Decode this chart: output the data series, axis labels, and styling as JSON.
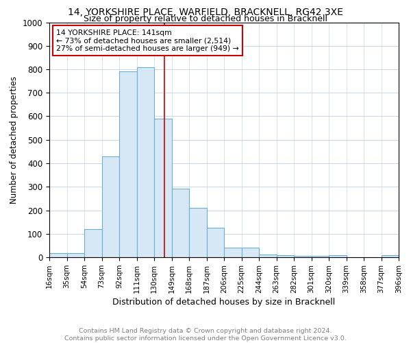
{
  "title1": "14, YORKSHIRE PLACE, WARFIELD, BRACKNELL, RG42 3XE",
  "title2": "Size of property relative to detached houses in Bracknell",
  "xlabel": "Distribution of detached houses by size in Bracknell",
  "ylabel": "Number of detached properties",
  "bin_edges": [
    16,
    35,
    54,
    73,
    92,
    111,
    130,
    149,
    168,
    187,
    206,
    225,
    244,
    263,
    282,
    301,
    320,
    339,
    358,
    377,
    396
  ],
  "bin_heights": [
    18,
    18,
    120,
    430,
    790,
    808,
    590,
    293,
    210,
    125,
    40,
    40,
    12,
    9,
    5,
    5,
    8,
    0,
    0,
    8
  ],
  "bar_facecolor": "#d6e8f5",
  "bar_edgecolor": "#6aaed6",
  "vline_x": 141,
  "vline_color": "#cc0000",
  "annotation_box_text": "14 YORKSHIRE PLACE: 141sqm\n← 73% of detached houses are smaller (2,514)\n27% of semi-detached houses are larger (949) →",
  "annotation_box_color": "#cc0000",
  "footer_text": "Contains HM Land Registry data © Crown copyright and database right 2024.\nContains public sector information licensed under the Open Government Licence v3.0.",
  "ylim": [
    0,
    1000
  ],
  "grid_color": "#c8d8e8",
  "background_color": "#ffffff",
  "title1_fontsize": 10,
  "title2_fontsize": 9,
  "xlabel_fontsize": 9,
  "ylabel_fontsize": 8.5,
  "tick_fontsize": 7.5,
  "footer_fontsize": 6.8
}
